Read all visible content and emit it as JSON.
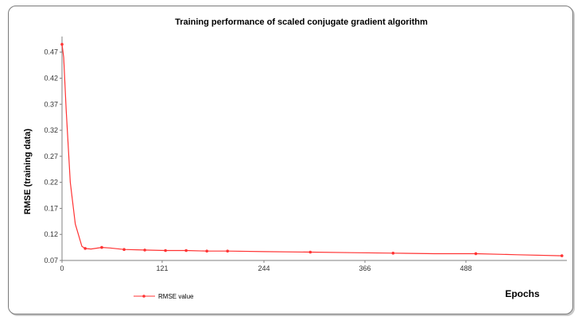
{
  "chart_data": {
    "type": "line",
    "title": "Training performance of scaled conjugate gradient algorithm",
    "xlabel": "Epochs",
    "ylabel": "RMSE (training data)",
    "xlim": [
      0,
      610
    ],
    "ylim": [
      0.07,
      0.5
    ],
    "x_ticks": [
      "0",
      "121",
      "244",
      "366",
      "488"
    ],
    "x_tick_values": [
      0,
      121,
      244,
      366,
      488
    ],
    "y_ticks": [
      "0.07",
      "0.12",
      "0.17",
      "0.22",
      "0.27",
      "0.32",
      "0.37",
      "0.42",
      "0.47"
    ],
    "y_tick_values": [
      0.07,
      0.12,
      0.17,
      0.22,
      0.27,
      0.32,
      0.37,
      0.42,
      0.47
    ],
    "grid": false,
    "legend": "bottom-left",
    "color": "#ff3333",
    "series": [
      {
        "name": "RMSE value",
        "x": [
          0,
          2,
          5,
          10,
          16,
          24,
          28,
          35,
          48,
          58,
          75,
          100,
          125,
          150,
          175,
          200,
          245,
          300,
          350,
          400,
          450,
          500,
          550,
          604
        ],
        "y": [
          0.485,
          0.46,
          0.36,
          0.22,
          0.14,
          0.097,
          0.093,
          0.092,
          0.095,
          0.094,
          0.091,
          0.09,
          0.089,
          0.089,
          0.088,
          0.088,
          0.087,
          0.086,
          0.085,
          0.084,
          0.083,
          0.083,
          0.081,
          0.079
        ]
      }
    ],
    "marker_x": [
      0,
      28,
      48,
      75,
      100,
      125,
      150,
      175,
      200,
      300,
      400,
      500,
      604
    ]
  }
}
